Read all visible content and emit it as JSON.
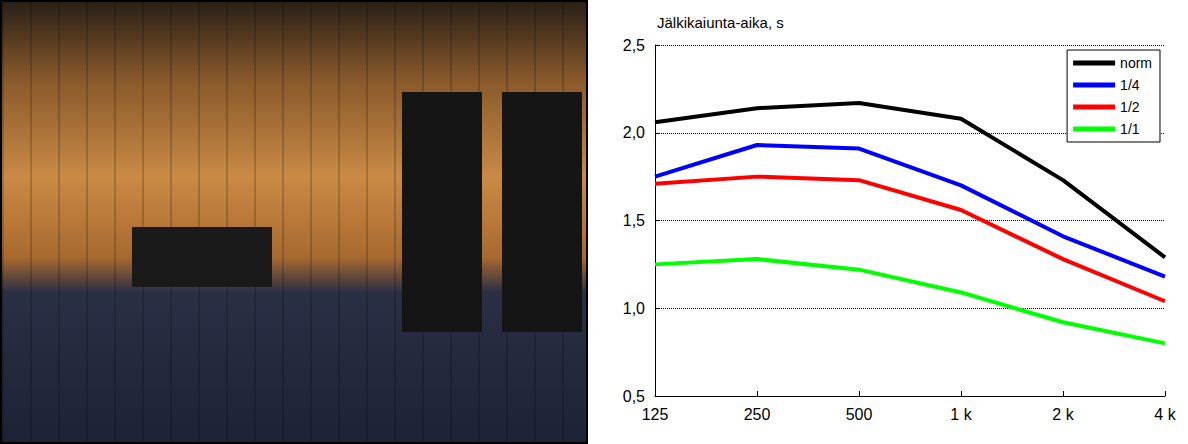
{
  "chart_data": {
    "type": "line",
    "title": "Jälkikaiunta-aika, s",
    "categories": [
      "125",
      "250",
      "500",
      "1 k",
      "2 k",
      "4 k"
    ],
    "series": [
      {
        "name": "norm",
        "color": "#000000",
        "values": [
          2.06,
          2.14,
          2.17,
          2.08,
          1.73,
          1.29
        ]
      },
      {
        "name": "1/4",
        "color": "#0000ff",
        "values": [
          1.75,
          1.93,
          1.91,
          1.7,
          1.41,
          1.18
        ]
      },
      {
        "name": "1/2",
        "color": "#ff0000",
        "values": [
          1.71,
          1.75,
          1.73,
          1.56,
          1.28,
          1.04
        ]
      },
      {
        "name": "1/1",
        "color": "#00ff00",
        "values": [
          1.25,
          1.28,
          1.22,
          1.09,
          0.92,
          0.8
        ]
      }
    ],
    "ylim": [
      0.5,
      2.5
    ],
    "yticks": [
      {
        "value": 0.5,
        "label": "0,5"
      },
      {
        "value": 1.0,
        "label": "1,0"
      },
      {
        "value": 1.5,
        "label": "1,5"
      },
      {
        "value": 2.0,
        "label": "2,0"
      },
      {
        "value": 2.5,
        "label": "2,5"
      }
    ],
    "grid": true,
    "legend": "upper-right",
    "marker": "none",
    "line_style": "solid"
  }
}
